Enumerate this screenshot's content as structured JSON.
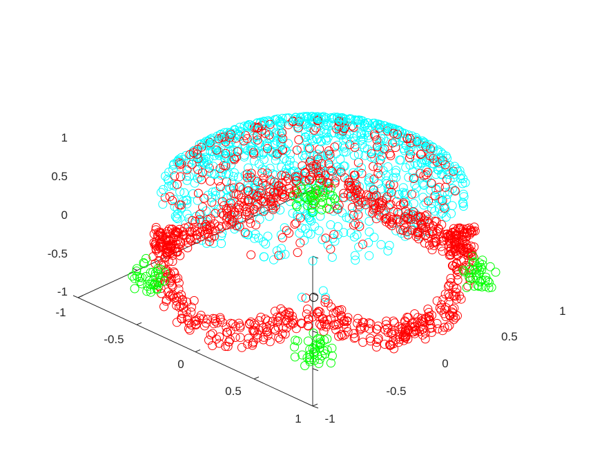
{
  "chart_data": {
    "type": "scatter",
    "projection": "3d",
    "marker": "circle-open",
    "grid": false,
    "xlim": [
      -1,
      1
    ],
    "ylim": [
      -1,
      1
    ],
    "zlim": [
      -1,
      1
    ],
    "x_ticks": [
      "-1",
      "-0.5",
      "0",
      "0.5",
      "1"
    ],
    "y_ticks": [
      "-1",
      "-0.5",
      "0",
      "0.5",
      "1"
    ],
    "z_ticks": [
      "-1",
      "-0.5",
      "0",
      "0.5",
      "1"
    ],
    "colors": {
      "cyan": "#00ffff",
      "red": "#ff0000",
      "green": "#00ff00",
      "black": "#000000"
    },
    "series": [
      {
        "color": "cyan",
        "description": "points on the upper cap of a unit sphere (z roughly 0.3 to 1)",
        "x": [
          0,
          0.2,
          -0.2,
          0.4,
          -0.4,
          0.1,
          -0.1,
          0.3,
          -0.3,
          0.5,
          -0.5,
          0.6,
          -0.6,
          0.0,
          0.25,
          -0.25,
          0.45,
          -0.45,
          0.15,
          -0.15
        ],
        "y": [
          0,
          0.1,
          -0.1,
          0.2,
          -0.3,
          0.4,
          -0.4,
          0.5,
          -0.5,
          0.0,
          0.3,
          -0.2,
          0.2,
          0.6,
          -0.6,
          0.55,
          -0.1,
          0.1,
          0.7,
          -0.7
        ],
        "z": [
          1.0,
          0.97,
          0.97,
          0.89,
          0.86,
          0.91,
          0.91,
          0.81,
          0.81,
          0.87,
          0.81,
          0.77,
          0.77,
          0.8,
          0.76,
          0.8,
          0.88,
          0.88,
          0.7,
          0.7
        ]
      },
      {
        "color": "red",
        "description": "points on the lower rim of the cap (z roughly -0.8 to 0.4)",
        "x": [
          0.95,
          -0.95,
          0.0,
          0.0,
          0.7,
          -0.7,
          0.7,
          -0.7,
          0.9,
          -0.9
        ],
        "y": [
          0.0,
          0.0,
          0.95,
          -0.95,
          0.6,
          0.6,
          -0.6,
          -0.6,
          0.3,
          -0.3
        ],
        "z": [
          -0.3,
          -0.3,
          -0.3,
          -0.3,
          -0.1,
          -0.1,
          -0.1,
          -0.1,
          0.2,
          0.2
        ]
      },
      {
        "color": "green",
        "description": "points concentrated at the four lowest corners (z near -0.9)",
        "x": [
          0.7,
          -0.7,
          0.7,
          -0.7
        ],
        "y": [
          0.7,
          0.7,
          -0.7,
          -0.7
        ],
        "z": [
          -0.9,
          -0.9,
          -0.9,
          -0.9
        ]
      },
      {
        "color": "black",
        "description": "single point near the bottom centre",
        "x": [
          0.0
        ],
        "y": [
          0.0
        ],
        "z": [
          -1.0
        ]
      }
    ]
  }
}
